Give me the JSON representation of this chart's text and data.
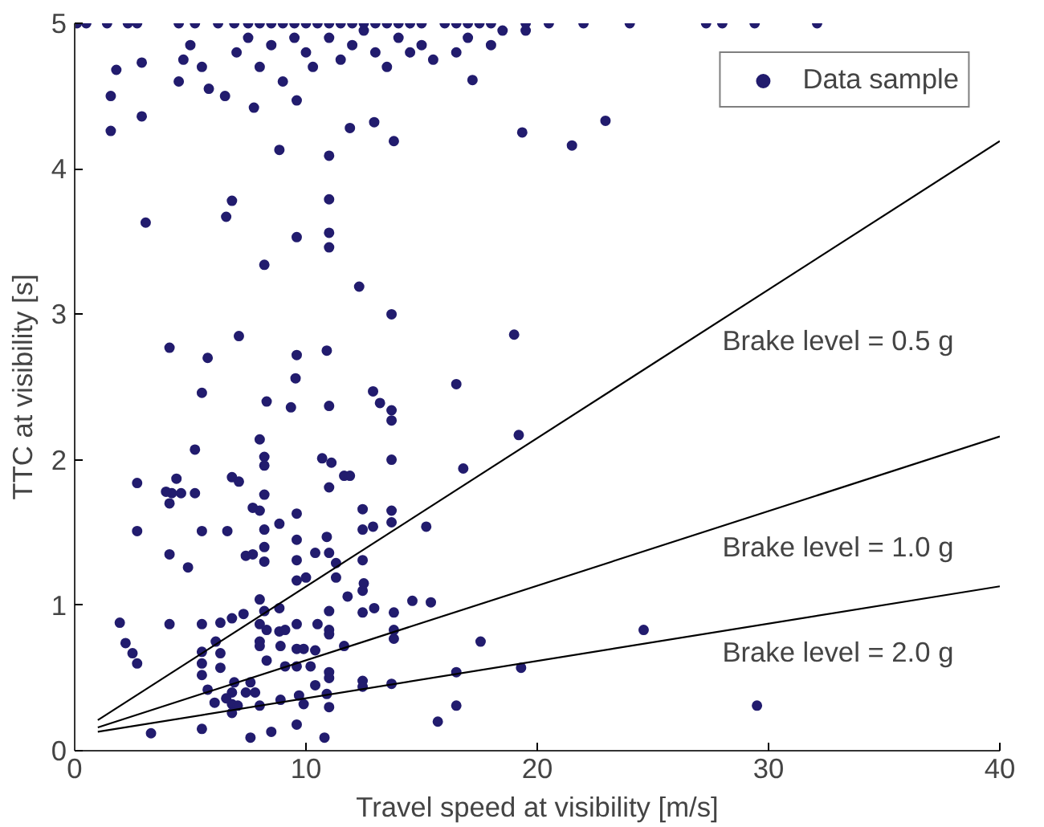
{
  "chart_data": {
    "type": "scatter",
    "xlabel": "Travel speed at visibility [m/s]",
    "ylabel": "TTC at visibility [s]",
    "xlim": [
      0,
      40
    ],
    "ylim": [
      0,
      5
    ],
    "xticks": [
      0,
      10,
      20,
      30,
      40
    ],
    "yticks": [
      0,
      1,
      2,
      3,
      4,
      5
    ],
    "grid": false,
    "legend": "top right",
    "marker": "circle",
    "series": [
      {
        "name": "Data sample",
        "color": "#221c6e",
        "x": [
          0.1,
          0.5,
          1.4,
          2.3,
          2.7,
          4.5,
          5.2,
          6.2,
          6.9,
          7.5,
          8,
          8.5,
          9,
          9.5,
          10,
          10.5,
          11,
          11.5,
          12,
          12.5,
          13,
          13.5,
          14,
          14.5,
          15,
          16,
          16.5,
          17,
          17.5,
          18,
          19.5,
          20.5,
          22,
          24,
          27.3,
          28,
          29.4,
          32.1,
          4.5,
          4.7,
          5,
          5.5,
          5.8,
          6.5,
          7,
          7.5,
          8,
          8.5,
          9,
          9.5,
          10,
          10.3,
          11,
          11.5,
          12,
          12.5,
          13,
          13.5,
          14,
          14.5,
          15,
          15.5,
          16.5,
          17,
          18,
          18.5,
          19.5,
          1.8,
          1.56,
          1.56,
          2.9,
          2.9,
          3.07,
          7.75,
          8.85,
          9.6,
          11,
          11.9,
          12.95,
          13.8,
          19.35,
          6.8,
          6.55,
          11,
          9.6,
          11,
          21.5,
          22.95,
          17.2,
          11,
          8.2,
          12.3,
          13.7,
          4.1,
          7.1,
          5.75,
          9.6,
          10.9,
          9.55,
          19.0,
          5.5,
          12.9,
          13.2,
          13.7,
          13.7,
          16.5,
          8.3,
          9.35,
          11,
          8.0,
          8.2,
          8.2,
          5.2,
          10.7,
          11.1,
          13.7,
          19.2,
          16.8,
          2.7,
          4.4,
          4.2,
          5.2,
          6.8,
          7.1,
          8.2,
          11,
          11.65,
          11.9,
          3.95,
          4.6,
          2.7,
          4.1,
          5.5,
          6.6,
          4.1,
          4.9,
          7.7,
          8.0,
          8.2,
          8.2,
          8.2,
          8.85,
          9.6,
          9.6,
          9.6,
          10.4,
          10.9,
          11,
          11.3,
          12.45,
          12.45,
          12.45,
          13.7,
          13.7,
          15.2,
          12.9,
          7.4,
          7.7,
          9.6,
          10.0,
          11.3,
          11.8,
          12.45,
          12.5,
          12.45,
          12.95,
          13.8,
          14.6,
          15.4,
          1.95,
          2.2,
          2.5,
          2.7,
          4.1,
          5.5,
          6.3,
          6.8,
          7.3,
          8.0,
          8.2,
          8.85,
          8.0,
          8.3,
          8.85,
          9.1,
          9.6,
          10.5,
          11,
          11,
          11,
          8.0,
          8.0,
          8.9,
          9.6,
          9.9,
          10.4,
          11.65,
          13.8,
          13.8,
          17.55,
          6.1,
          5.5,
          6.3,
          5.5,
          5.5,
          6.3,
          8.3,
          9.1,
          9.6,
          10.2,
          11,
          11,
          12.45,
          12.45,
          13.7,
          16.5,
          19.3,
          5.75,
          6.9,
          7.6,
          6.8,
          7.4,
          7.8,
          6.05,
          6.55,
          6.8,
          7.05,
          8.0,
          8.9,
          9.7,
          10.4,
          10.9,
          9.9,
          11,
          6.8,
          5.5,
          3.3,
          7.6,
          8.5,
          9.6,
          10.8,
          15.7,
          16.5,
          24.6,
          29.5
        ],
        "values": [
          5,
          5,
          5,
          5,
          5,
          5,
          5,
          5,
          5,
          5,
          5,
          5,
          5,
          5,
          5,
          5,
          5,
          5,
          5,
          5,
          5,
          5,
          5,
          5,
          5,
          5,
          5,
          5,
          5,
          5,
          5,
          5,
          5,
          5,
          5,
          5,
          5,
          5,
          4.6,
          4.75,
          4.85,
          4.7,
          4.55,
          4.5,
          4.8,
          4.9,
          4.7,
          4.85,
          4.6,
          4.9,
          4.8,
          4.7,
          4.9,
          4.75,
          4.85,
          4.95,
          4.8,
          4.7,
          4.9,
          4.8,
          4.85,
          4.75,
          4.8,
          4.9,
          4.85,
          4.95,
          4.95,
          4.68,
          4.5,
          4.26,
          4.73,
          4.36,
          3.63,
          4.42,
          4.13,
          4.47,
          4.09,
          4.28,
          4.32,
          4.19,
          4.25,
          3.78,
          3.67,
          3.79,
          3.53,
          3.56,
          4.16,
          4.33,
          4.61,
          3.46,
          3.34,
          3.19,
          3.0,
          2.77,
          2.85,
          2.7,
          2.72,
          2.75,
          2.56,
          2.86,
          2.46,
          2.47,
          2.39,
          2.34,
          2.27,
          2.52,
          2.4,
          2.36,
          2.37,
          2.14,
          2.02,
          1.96,
          2.07,
          2.01,
          1.98,
          2.0,
          2.17,
          1.94,
          1.84,
          1.87,
          1.77,
          1.77,
          1.88,
          1.85,
          1.76,
          1.81,
          1.89,
          1.89,
          1.78,
          1.77,
          1.51,
          1.7,
          1.51,
          1.51,
          1.35,
          1.26,
          1.67,
          1.65,
          1.52,
          1.4,
          1.3,
          1.56,
          1.63,
          1.45,
          1.31,
          1.36,
          1.47,
          1.36,
          1.29,
          1.66,
          1.52,
          1.31,
          1.65,
          1.57,
          1.54,
          1.54,
          1.34,
          1.35,
          1.17,
          1.19,
          1.19,
          1.06,
          1.1,
          1.15,
          0.95,
          0.98,
          0.95,
          1.03,
          1.02,
          0.88,
          0.74,
          0.67,
          0.6,
          0.87,
          0.87,
          0.88,
          0.91,
          0.94,
          1.04,
          0.96,
          0.98,
          0.87,
          0.83,
          0.82,
          0.83,
          0.87,
          0.87,
          0.96,
          0.83,
          0.8,
          0.75,
          0.72,
          0.72,
          0.7,
          0.7,
          0.69,
          0.72,
          0.83,
          0.77,
          0.75,
          0.75,
          0.68,
          0.67,
          0.6,
          0.52,
          0.57,
          0.62,
          0.58,
          0.58,
          0.58,
          0.54,
          0.5,
          0.48,
          0.44,
          0.46,
          0.54,
          0.57,
          0.42,
          0.47,
          0.47,
          0.4,
          0.4,
          0.4,
          0.33,
          0.36,
          0.32,
          0.31,
          0.31,
          0.35,
          0.38,
          0.45,
          0.39,
          0.32,
          0.3,
          0.26,
          0.15,
          0.12,
          0.09,
          0.13,
          0.18,
          0.09,
          0.2,
          0.31,
          0.83,
          0.31
        ]
      },
      {
        "name": "Brake level =  0.5 g",
        "type": "line",
        "marker": "none",
        "color": "#000000",
        "x": [
          1,
          40
        ],
        "values": [
          0.21,
          4.19
        ]
      },
      {
        "name": "Brake level =  1.0 g",
        "type": "line",
        "marker": "none",
        "color": "#000000",
        "x": [
          1,
          40
        ],
        "values": [
          0.16,
          2.16
        ]
      },
      {
        "name": "Brake level =  2.0 g",
        "type": "line",
        "marker": "none",
        "color": "#000000",
        "x": [
          1,
          40
        ],
        "values": [
          0.13,
          1.13
        ]
      }
    ]
  }
}
